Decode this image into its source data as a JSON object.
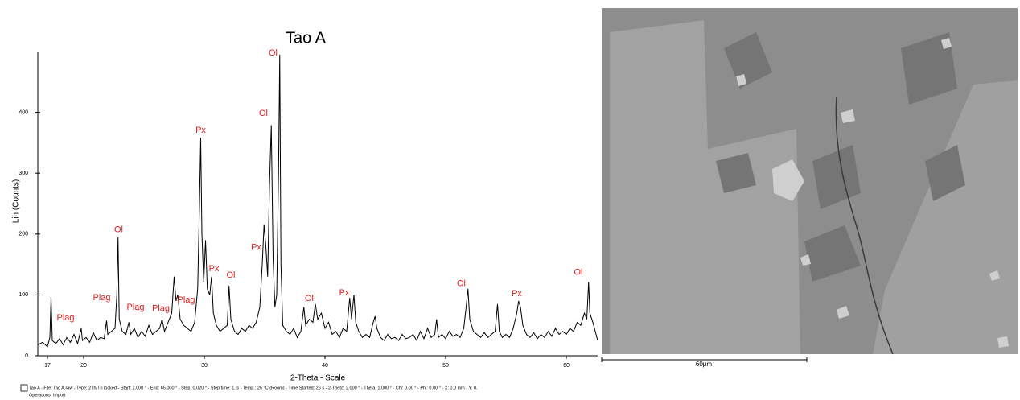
{
  "chart_data": {
    "type": "line",
    "title": "Tao A",
    "x_label": "2-Theta - Scale",
    "y_label": "Lin (Counts)",
    "x": [
      16.2,
      16.6,
      17.0,
      17.2,
      17.3,
      17.4,
      17.7,
      18.0,
      18.3,
      18.6,
      18.9,
      19.2,
      19.5,
      19.8,
      19.9,
      20.2,
      20.5,
      20.8,
      21.1,
      21.4,
      21.7,
      21.9,
      22.0,
      22.3,
      22.6,
      22.75,
      22.85,
      22.95,
      23.2,
      23.5,
      23.75,
      23.9,
      24.2,
      24.5,
      24.8,
      25.1,
      25.4,
      25.7,
      26.0,
      26.3,
      26.5,
      26.7,
      27.0,
      27.3,
      27.5,
      27.65,
      27.8,
      28.0,
      28.3,
      28.6,
      28.9,
      29.2,
      29.45,
      29.6,
      29.7,
      29.8,
      29.95,
      30.1,
      30.25,
      30.45,
      30.6,
      30.75,
      31.0,
      31.3,
      31.6,
      31.9,
      32.05,
      32.2,
      32.5,
      32.8,
      33.1,
      33.4,
      33.7,
      34.0,
      34.3,
      34.6,
      34.8,
      34.95,
      35.1,
      35.25,
      35.4,
      35.55,
      35.7,
      35.85,
      36.0,
      36.15,
      36.25,
      36.35,
      36.5,
      36.8,
      37.1,
      37.4,
      37.7,
      38.0,
      38.25,
      38.4,
      38.7,
      39.0,
      39.2,
      39.4,
      39.7,
      40.0,
      40.3,
      40.6,
      40.9,
      41.2,
      41.5,
      41.8,
      42.05,
      42.2,
      42.4,
      42.55,
      42.8,
      43.1,
      43.4,
      43.7,
      44.0,
      44.15,
      44.3,
      44.6,
      44.9,
      45.2,
      45.5,
      45.8,
      46.1,
      46.4,
      46.7,
      47.0,
      47.3,
      47.6,
      47.9,
      48.2,
      48.5,
      48.8,
      49.1,
      49.25,
      49.4,
      49.7,
      50.0,
      50.3,
      50.6,
      50.9,
      51.2,
      51.5,
      51.7,
      51.85,
      52.0,
      52.3,
      52.6,
      52.9,
      53.2,
      53.5,
      53.8,
      54.1,
      54.3,
      54.45,
      54.7,
      55.0,
      55.3,
      55.6,
      55.9,
      56.05,
      56.2,
      56.4,
      56.7,
      57.0,
      57.3,
      57.6,
      57.9,
      58.2,
      58.5,
      58.8,
      59.1,
      59.4,
      59.7,
      60.0,
      60.3,
      60.6,
      60.9,
      61.2,
      61.5,
      61.7,
      61.85,
      61.95,
      62.2,
      62.4,
      62.6
    ],
    "series": [
      {
        "name": "Tao A",
        "color": "#000000",
        "values": [
          18,
          22,
          15,
          30,
          97,
          25,
          20,
          28,
          18,
          30,
          22,
          35,
          20,
          45,
          25,
          30,
          22,
          38,
          25,
          30,
          28,
          58,
          35,
          40,
          45,
          100,
          195,
          60,
          40,
          35,
          55,
          35,
          45,
          30,
          40,
          32,
          50,
          35,
          40,
          45,
          60,
          40,
          55,
          70,
          130,
          90,
          100,
          60,
          50,
          45,
          40,
          55,
          110,
          250,
          358,
          200,
          120,
          190,
          110,
          100,
          130,
          70,
          50,
          40,
          45,
          50,
          115,
          60,
          40,
          35,
          45,
          40,
          50,
          45,
          55,
          80,
          150,
          215,
          180,
          130,
          280,
          379,
          160,
          80,
          100,
          300,
          495,
          150,
          50,
          40,
          35,
          45,
          30,
          40,
          80,
          50,
          60,
          55,
          85,
          60,
          70,
          45,
          55,
          35,
          40,
          30,
          45,
          40,
          95,
          60,
          100,
          55,
          40,
          30,
          35,
          30,
          55,
          65,
          45,
          30,
          25,
          35,
          28,
          30,
          25,
          35,
          28,
          30,
          35,
          25,
          40,
          28,
          45,
          30,
          35,
          60,
          30,
          35,
          28,
          40,
          32,
          35,
          30,
          45,
          80,
          110,
          60,
          40,
          35,
          30,
          38,
          30,
          35,
          40,
          85,
          40,
          30,
          35,
          30,
          45,
          70,
          90,
          80,
          50,
          35,
          30,
          38,
          28,
          35,
          30,
          40,
          32,
          45,
          35,
          40,
          35,
          45,
          40,
          55,
          50,
          70,
          60,
          121,
          70,
          55,
          40,
          25
        ]
      }
    ],
    "xlim": [
      16.2,
      62.6
    ],
    "xticks": [
      17,
      20,
      30,
      40,
      50,
      60
    ],
    "ylim": [
      0,
      500
    ],
    "yticks": [
      0,
      100,
      200,
      300,
      400
    ],
    "annotations": [
      {
        "text": "Plag",
        "x": 18.5,
        "y": 62
      },
      {
        "text": "Plag",
        "x": 21.5,
        "y": 95
      },
      {
        "text": "Plag",
        "x": 24.3,
        "y": 79
      },
      {
        "text": "Plag",
        "x": 26.4,
        "y": 77
      },
      {
        "text": "Plag",
        "x": 28.5,
        "y": 91
      },
      {
        "text": "Ol",
        "x": 22.9,
        "y": 207
      },
      {
        "text": "Px",
        "x": 29.7,
        "y": 370
      },
      {
        "text": "Px",
        "x": 30.8,
        "y": 143
      },
      {
        "text": "Ol",
        "x": 32.2,
        "y": 132
      },
      {
        "text": "Px",
        "x": 34.3,
        "y": 178
      },
      {
        "text": "Ol",
        "x": 34.9,
        "y": 398
      },
      {
        "text": "Ol",
        "x": 35.7,
        "y": 497
      },
      {
        "text": "Ol",
        "x": 38.7,
        "y": 94
      },
      {
        "text": "Px",
        "x": 41.6,
        "y": 103
      },
      {
        "text": "Ol",
        "x": 51.3,
        "y": 118
      },
      {
        "text": "Px",
        "x": 55.9,
        "y": 102
      },
      {
        "text": "Ol",
        "x": 61.0,
        "y": 137
      }
    ],
    "footer": [
      "Tao A - File: Tao A.raw - Type: 2Th/Th locked - Start: 2.000 ° - End: 65.000 ° - Step: 0.020 ° - Step time: 1. s - Temp.: 25 °C (Room) - Time Started: 26 s - 2-Theta: 2.000 ° - Theta: 1.000 ° - Chi: 0.00 ° - Phi: 0.00 ° - X: 0.0 mm - Y: 0.",
      "Operations: Import"
    ],
    "scale_bar": "60μm"
  }
}
